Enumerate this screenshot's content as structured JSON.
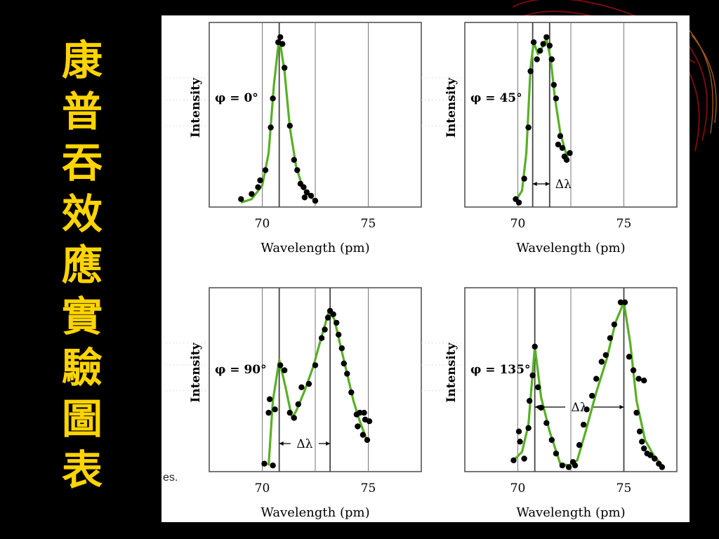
{
  "slide": {
    "title_chars": [
      "康",
      "普",
      "吞",
      "效",
      "應",
      "實",
      "驗",
      "圖",
      "表"
    ],
    "leftover_text": "es."
  },
  "colors": {
    "background": "#000000",
    "title": "#ffd400",
    "curve": "#58b025",
    "points": "#000000"
  },
  "chart_data": [
    {
      "type": "scatter",
      "annotation": "φ = 0°",
      "xlabel": "Wavelength (pm)",
      "ylabel": "Intensity",
      "xlim": [
        67.5,
        77.5
      ],
      "ylim": [
        0,
        100
      ],
      "xticks": [
        70,
        75
      ],
      "peak_lines": [
        70.8
      ],
      "delta_label": "",
      "points": [
        [
          69.0,
          3
        ],
        [
          69.5,
          6
        ],
        [
          69.8,
          10
        ],
        [
          69.9,
          14
        ],
        [
          70.15,
          20
        ],
        [
          70.4,
          45
        ],
        [
          70.5,
          62
        ],
        [
          70.75,
          95
        ],
        [
          70.85,
          98
        ],
        [
          70.95,
          94
        ],
        [
          71.05,
          80
        ],
        [
          71.3,
          46
        ],
        [
          71.5,
          26
        ],
        [
          71.65,
          20
        ],
        [
          71.8,
          12
        ],
        [
          71.95,
          10
        ],
        [
          72.1,
          7
        ],
        [
          72.3,
          5
        ],
        [
          72.5,
          2
        ],
        [
          72.0,
          4
        ]
      ],
      "curve": [
        [
          69.0,
          1
        ],
        [
          69.5,
          3
        ],
        [
          70.0,
          11
        ],
        [
          70.3,
          30
        ],
        [
          70.55,
          70
        ],
        [
          70.8,
          98
        ],
        [
          71.05,
          78
        ],
        [
          71.3,
          45
        ],
        [
          71.6,
          22
        ],
        [
          71.9,
          10
        ],
        [
          72.2,
          5
        ],
        [
          72.5,
          2
        ]
      ]
    },
    {
      "type": "scatter",
      "annotation": "φ = 45°",
      "xlabel": "Wavelength (pm)",
      "ylabel": "Intensity",
      "xlim": [
        67.5,
        77.5
      ],
      "ylim": [
        0,
        100
      ],
      "xticks": [
        70,
        75
      ],
      "peak_lines": [
        70.7,
        71.5
      ],
      "delta_label": "Δλ",
      "points": [
        [
          69.9,
          3
        ],
        [
          70.05,
          1
        ],
        [
          70.3,
          15
        ],
        [
          70.5,
          45
        ],
        [
          70.6,
          78
        ],
        [
          70.75,
          95
        ],
        [
          70.9,
          85
        ],
        [
          71.05,
          90
        ],
        [
          71.2,
          94
        ],
        [
          71.35,
          98
        ],
        [
          71.5,
          93
        ],
        [
          71.6,
          85
        ],
        [
          71.7,
          70
        ],
        [
          71.8,
          62
        ],
        [
          71.9,
          35
        ],
        [
          72.0,
          40
        ],
        [
          72.1,
          33
        ],
        [
          72.2,
          28
        ],
        [
          72.3,
          26
        ],
        [
          72.45,
          30
        ]
      ],
      "curve": [
        [
          69.9,
          2
        ],
        [
          70.2,
          8
        ],
        [
          70.4,
          30
        ],
        [
          70.6,
          80
        ],
        [
          70.75,
          95
        ],
        [
          70.95,
          88
        ],
        [
          71.15,
          92
        ],
        [
          71.35,
          97
        ],
        [
          71.55,
          85
        ],
        [
          71.75,
          62
        ],
        [
          72.0,
          42
        ],
        [
          72.2,
          33
        ],
        [
          72.4,
          25
        ]
      ]
    },
    {
      "type": "scatter",
      "annotation": "φ = 90°",
      "xlabel": "Wavelength (pm)",
      "ylabel": "Intensity",
      "xlim": [
        67.5,
        77.5
      ],
      "ylim": [
        0,
        100
      ],
      "xticks": [
        70,
        75
      ],
      "peak_lines": [
        70.8,
        73.2
      ],
      "delta_label": "Δλ",
      "points": [
        [
          70.1,
          3
        ],
        [
          70.5,
          2
        ],
        [
          70.3,
          33
        ],
        [
          70.35,
          41
        ],
        [
          70.6,
          35
        ],
        [
          70.85,
          61
        ],
        [
          71.05,
          58
        ],
        [
          71.3,
          33
        ],
        [
          71.5,
          30
        ],
        [
          71.7,
          38
        ],
        [
          71.85,
          48
        ],
        [
          72.2,
          50
        ],
        [
          72.5,
          61
        ],
        [
          72.8,
          77
        ],
        [
          72.95,
          82
        ],
        [
          73.1,
          89
        ],
        [
          73.2,
          93
        ],
        [
          73.35,
          91
        ],
        [
          73.5,
          86
        ],
        [
          73.6,
          79
        ],
        [
          73.75,
          71
        ],
        [
          73.85,
          62
        ],
        [
          74.0,
          56
        ],
        [
          74.2,
          45
        ],
        [
          74.45,
          32
        ],
        [
          74.6,
          33
        ],
        [
          74.8,
          33
        ],
        [
          74.5,
          25
        ],
        [
          74.75,
          20
        ],
        [
          74.85,
          29
        ],
        [
          75.05,
          28
        ],
        [
          74.95,
          17
        ]
      ],
      "curve": [
        [
          70.3,
          2
        ],
        [
          70.5,
          40
        ],
        [
          70.8,
          64
        ],
        [
          71.1,
          48
        ],
        [
          71.4,
          30
        ],
        [
          71.6,
          34
        ],
        [
          72.0,
          46
        ],
        [
          72.4,
          60
        ],
        [
          72.8,
          78
        ],
        [
          73.15,
          93
        ],
        [
          73.4,
          88
        ],
        [
          73.7,
          72
        ],
        [
          74.0,
          56
        ],
        [
          74.3,
          40
        ],
        [
          74.6,
          28
        ],
        [
          74.9,
          18
        ]
      ]
    },
    {
      "type": "scatter",
      "annotation": "φ = 135°",
      "xlabel": "Wavelength (pm)",
      "ylabel": "Intensity",
      "xlim": [
        67.5,
        77.5
      ],
      "ylim": [
        0,
        100
      ],
      "xticks": [
        70,
        75
      ],
      "peak_lines": [
        70.8,
        75.0
      ],
      "delta_label": "Δλ",
      "points": [
        [
          69.8,
          5
        ],
        [
          70.05,
          22
        ],
        [
          70.1,
          16
        ],
        [
          70.3,
          6
        ],
        [
          70.5,
          24
        ],
        [
          70.55,
          40
        ],
        [
          70.7,
          55
        ],
        [
          70.8,
          72
        ],
        [
          70.95,
          48
        ],
        [
          71.1,
          36
        ],
        [
          71.35,
          27
        ],
        [
          71.6,
          17
        ],
        [
          71.8,
          9
        ],
        [
          72.1,
          2
        ],
        [
          72.4,
          1
        ],
        [
          72.6,
          4
        ],
        [
          72.7,
          2
        ],
        [
          72.9,
          14
        ],
        [
          73.1,
          26
        ],
        [
          73.25,
          35
        ],
        [
          73.5,
          43
        ],
        [
          73.7,
          53
        ],
        [
          73.95,
          63
        ],
        [
          74.15,
          67
        ],
        [
          74.35,
          77
        ],
        [
          74.55,
          85
        ],
        [
          74.85,
          98
        ],
        [
          75.05,
          98
        ],
        [
          75.25,
          66
        ],
        [
          75.45,
          58
        ],
        [
          75.7,
          53
        ],
        [
          75.95,
          52
        ],
        [
          75.6,
          33
        ],
        [
          75.75,
          22
        ],
        [
          75.85,
          16
        ],
        [
          75.95,
          12
        ],
        [
          76.1,
          9
        ],
        [
          76.25,
          8
        ],
        [
          76.45,
          6
        ],
        [
          76.65,
          3
        ],
        [
          76.8,
          1
        ]
      ],
      "curve": [
        [
          69.8,
          5
        ],
        [
          70.2,
          10
        ],
        [
          70.5,
          26
        ],
        [
          70.8,
          72
        ],
        [
          71.1,
          42
        ],
        [
          71.5,
          22
        ],
        [
          72.0,
          3
        ],
        [
          72.4,
          2
        ],
        [
          72.8,
          5
        ],
        [
          73.2,
          22
        ],
        [
          73.7,
          45
        ],
        [
          74.2,
          65
        ],
        [
          74.6,
          86
        ],
        [
          75.0,
          98
        ],
        [
          75.3,
          74
        ],
        [
          75.6,
          40
        ],
        [
          76.0,
          17
        ],
        [
          76.4,
          8
        ],
        [
          76.8,
          2
        ]
      ]
    }
  ]
}
